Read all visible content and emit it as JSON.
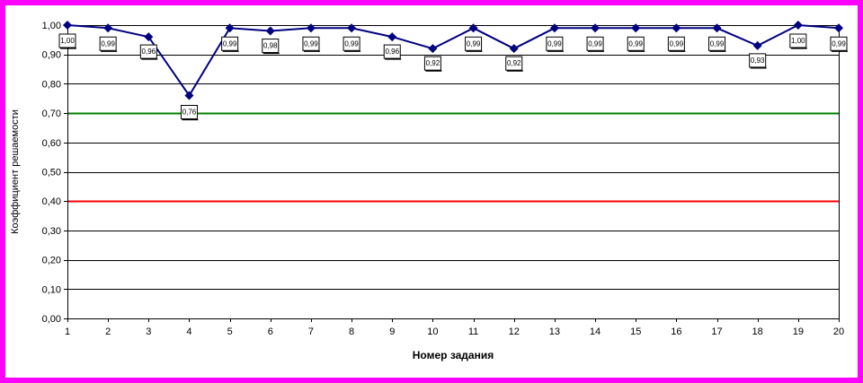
{
  "chart_data": {
    "type": "line",
    "title": "",
    "xlabel": "Номер задания",
    "ylabel": "Коэффициент решаемости",
    "x": [
      1,
      2,
      3,
      4,
      5,
      6,
      7,
      8,
      9,
      10,
      11,
      12,
      13,
      14,
      15,
      16,
      17,
      18,
      19,
      20
    ],
    "series": [
      {
        "values": [
          1.0,
          0.99,
          0.96,
          0.76,
          0.99,
          0.98,
          0.99,
          0.99,
          0.96,
          0.92,
          0.99,
          0.92,
          0.99,
          0.99,
          0.99,
          0.99,
          0.99,
          0.93,
          1.0,
          0.99
        ],
        "labels": [
          "1,00",
          "0,99",
          "0,96",
          "0,76",
          "0,99",
          "0,98",
          "0,99",
          "0,99",
          "0,96",
          "0,92",
          "0,99",
          "0,92",
          "0,99",
          "0,99",
          "0,99",
          "0,99",
          "0,99",
          "0,93",
          "1,00",
          "0,99"
        ],
        "color": "#000080"
      }
    ],
    "reference_lines": [
      {
        "value": 0.7,
        "color": "#008000"
      },
      {
        "value": 0.4,
        "color": "#ff0000"
      }
    ],
    "ylim": [
      0,
      1.0
    ],
    "yticks": [
      "0,00",
      "0,10",
      "0,20",
      "0,30",
      "0,40",
      "0,50",
      "0,60",
      "0,70",
      "0,80",
      "0,90",
      "1,00"
    ],
    "xticks": [
      "1",
      "2",
      "3",
      "4",
      "5",
      "6",
      "7",
      "8",
      "9",
      "10",
      "11",
      "12",
      "13",
      "14",
      "15",
      "16",
      "17",
      "18",
      "19",
      "20"
    ],
    "grid": true,
    "gridline_color": "#000000",
    "frame_color": "#ff00ff"
  }
}
